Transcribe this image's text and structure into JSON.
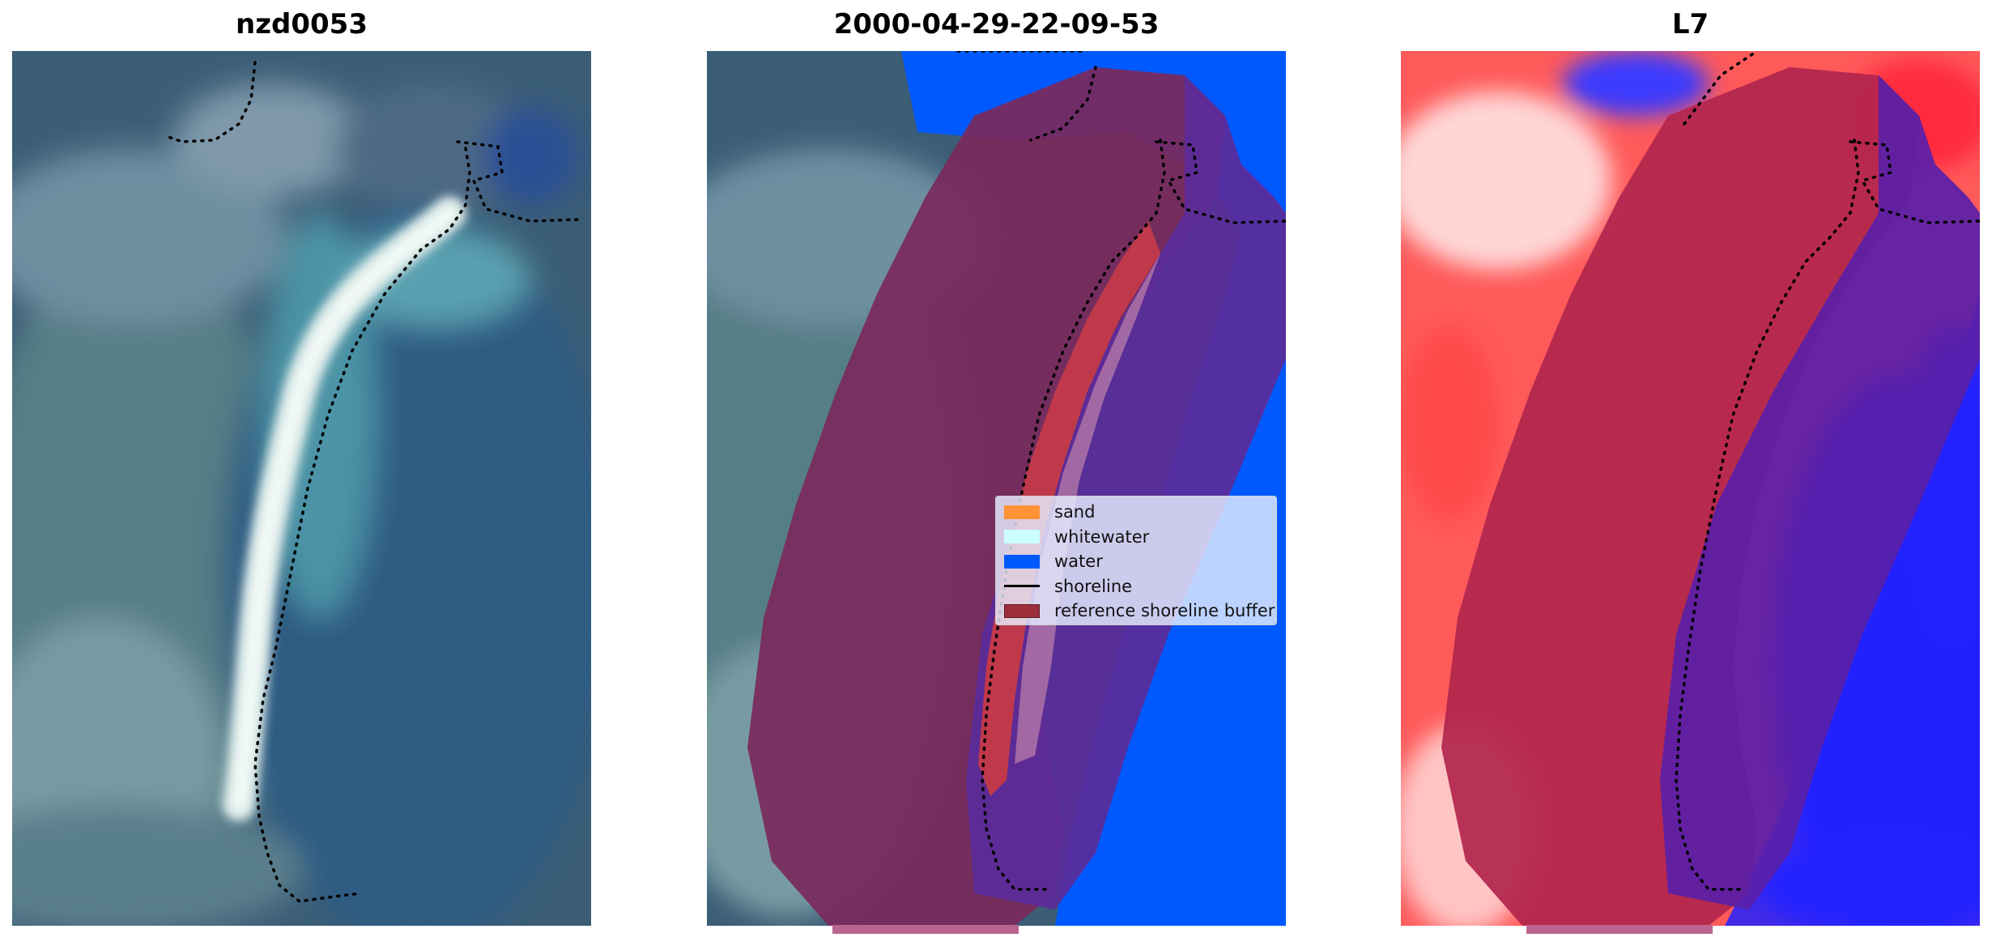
{
  "titles": {
    "left": "nzd0053",
    "middle": "2000-04-29-22-09-53",
    "right": "L7"
  },
  "legend": {
    "items": [
      {
        "label": "sand",
        "color": "#ff9236",
        "kind": "patch"
      },
      {
        "label": "whitewater",
        "color": "#ccffff",
        "kind": "patch"
      },
      {
        "label": "water",
        "color": "#0059ff",
        "kind": "patch"
      },
      {
        "label": "shoreline",
        "color": "#000000",
        "kind": "line"
      },
      {
        "label": "reference shoreline buffer",
        "color": "#9e2e3a",
        "kind": "patch"
      }
    ]
  },
  "colors": {
    "water_class": "#0059ff",
    "buffer": "#7a2a5c",
    "sand_strip": "#c0394a",
    "shoreline": "#000000",
    "index_positive": "#ff3b3b",
    "index_negative": "#1a1aff"
  }
}
